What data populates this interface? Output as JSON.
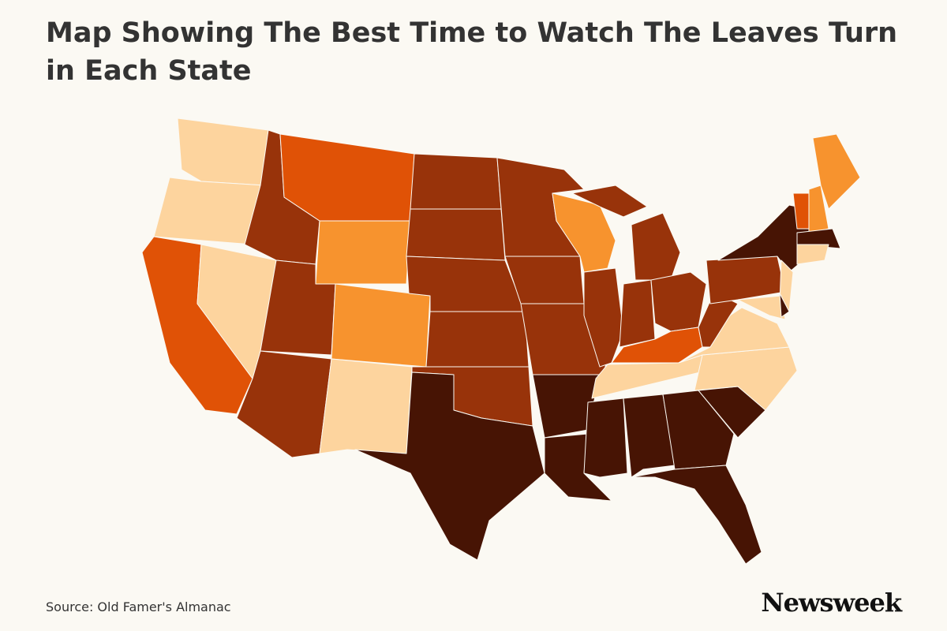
{
  "header": {
    "title": "Map Showing The Best Time to Watch The Leaves Turn in Each State"
  },
  "footer": {
    "source": "Source: Old Famer's Almanac",
    "logo": "Newsweek"
  }
}
